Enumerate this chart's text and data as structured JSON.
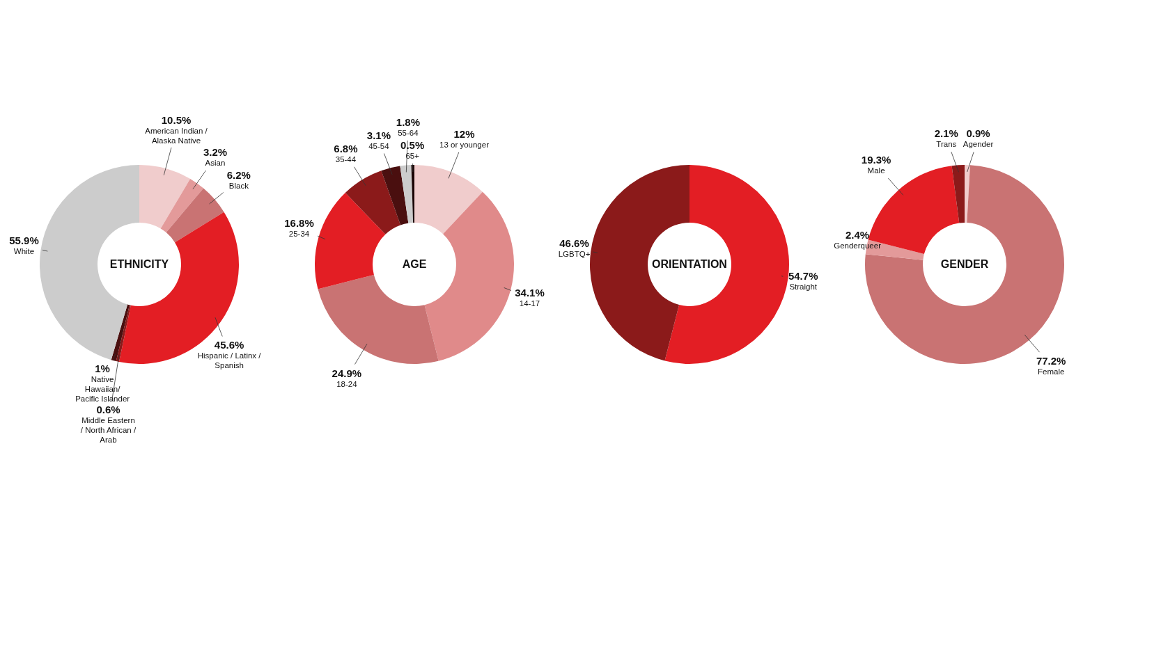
{
  "chart_data": [
    {
      "type": "donut",
      "title": "ETHNICITY",
      "categories": [
        "American Indian /\nAlaska Native",
        "Asian",
        "Black",
        "Hispanic / Latinx /\nSpanish",
        "Middle Eastern\n/ North African /\nArab",
        "Native\nHawaiian/\nPacific Islander",
        "White"
      ],
      "values": [
        10.5,
        3.2,
        6.2,
        45.6,
        0.6,
        1,
        55.9
      ],
      "value_labels": [
        "10.5%",
        "3.2%",
        "6.2%",
        "45.6%",
        "0.6%",
        "1%",
        "55.9%"
      ],
      "colors": [
        "#f0cccc",
        "#e39a9a",
        "#c97373",
        "#e31e24",
        "#8b1a1a",
        "#4a0f0f",
        "#cccccc"
      ]
    },
    {
      "type": "donut",
      "title": "AGE",
      "categories": [
        "13 or younger",
        "14-17",
        "18-24",
        "25-34",
        "35-44",
        "45-54",
        "55-64",
        "65+"
      ],
      "values": [
        12,
        34.1,
        24.9,
        16.8,
        6.8,
        3.1,
        1.8,
        0.5
      ],
      "value_labels": [
        "12%",
        "34.1%",
        "24.9%",
        "16.8%",
        "6.8%",
        "3.1%",
        "1.8%",
        "0.5%"
      ],
      "colors": [
        "#f0cccc",
        "#e08a8a",
        "#c97373",
        "#e31e24",
        "#8b1a1a",
        "#4a0f0f",
        "#cccccc",
        "#1a0505"
      ]
    },
    {
      "type": "donut",
      "title": "ORIENTATION",
      "categories": [
        "Straight",
        "LGBTQ+"
      ],
      "values": [
        54.7,
        46.6
      ],
      "value_labels": [
        "54.7%",
        "46.6%"
      ],
      "colors": [
        "#e31e24",
        "#8b1a1a"
      ]
    },
    {
      "type": "donut",
      "title": "GENDER",
      "categories": [
        "Agender",
        "Female",
        "Genderqueer",
        "Male",
        "Trans"
      ],
      "values": [
        0.9,
        77.2,
        2.4,
        19.3,
        2.1
      ],
      "value_labels": [
        "0.9%",
        "77.2%",
        "2.4%",
        "19.3%",
        "2.1%"
      ],
      "colors": [
        "#f0cccc",
        "#c97373",
        "#e39a9a",
        "#e31e24",
        "#8b1a1a"
      ]
    }
  ]
}
